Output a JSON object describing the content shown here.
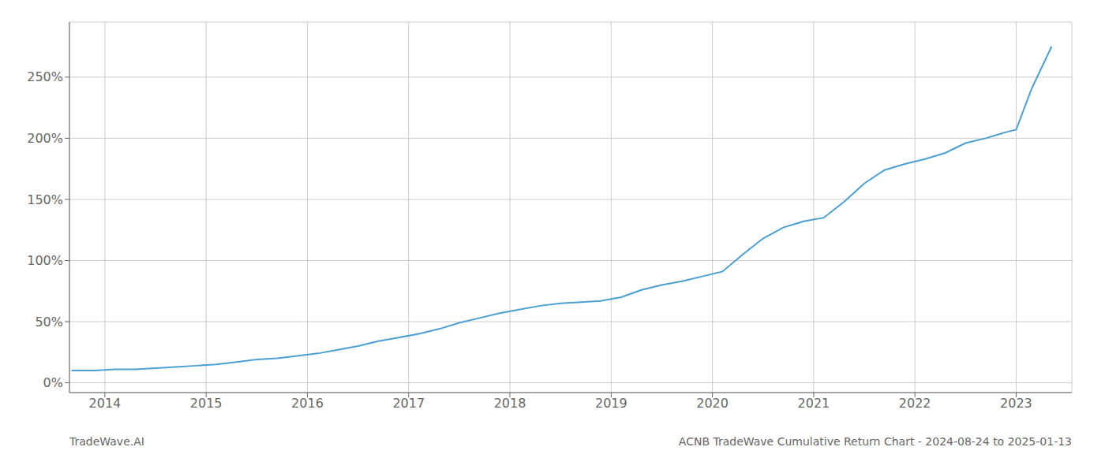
{
  "chart_data": {
    "type": "line",
    "title": "ACNB TradeWave Cumulative Return Chart - 2024-08-24 to 2025-01-13",
    "annotations": [
      "TradeWave.AI"
    ],
    "x": [
      2013.67,
      2013.9,
      2014.1,
      2014.3,
      2014.5,
      2014.7,
      2014.9,
      2015.1,
      2015.3,
      2015.5,
      2015.7,
      2015.9,
      2016.1,
      2016.3,
      2016.5,
      2016.7,
      2016.9,
      2017.1,
      2017.3,
      2017.5,
      2017.7,
      2017.9,
      2018.1,
      2018.3,
      2018.5,
      2018.7,
      2018.9,
      2019.1,
      2019.3,
      2019.5,
      2019.7,
      2019.9,
      2020.1,
      2020.3,
      2020.5,
      2020.7,
      2020.9,
      2021.1,
      2021.3,
      2021.5,
      2021.7,
      2021.9,
      2022.1,
      2022.3,
      2022.5,
      2022.7,
      2022.9,
      2023.0,
      2023.15,
      2023.35
    ],
    "values": [
      10,
      10,
      11,
      11,
      12,
      13,
      14,
      15,
      17,
      19,
      20,
      22,
      24,
      27,
      30,
      34,
      37,
      40,
      44,
      49,
      53,
      57,
      60,
      63,
      65,
      66,
      67,
      70,
      76,
      80,
      83,
      87,
      91,
      105,
      118,
      127,
      132,
      135,
      148,
      163,
      174,
      179,
      183,
      188,
      196,
      200,
      205,
      207,
      240,
      275
    ],
    "color": "#4a9fd4",
    "xlim": [
      2013.65,
      2023.55
    ],
    "xticks": [
      2014,
      2015,
      2016,
      2017,
      2018,
      2019,
      2020,
      2021,
      2022,
      2023
    ],
    "ylim": [
      -8,
      295
    ],
    "yticks": [
      {
        "value": 0,
        "label": "0%"
      },
      {
        "value": 50,
        "label": "50%"
      },
      {
        "value": 100,
        "label": "100%"
      },
      {
        "value": 150,
        "label": "150%"
      },
      {
        "value": 200,
        "label": "200%"
      },
      {
        "value": 250,
        "label": "250%"
      }
    ],
    "grid": true
  }
}
